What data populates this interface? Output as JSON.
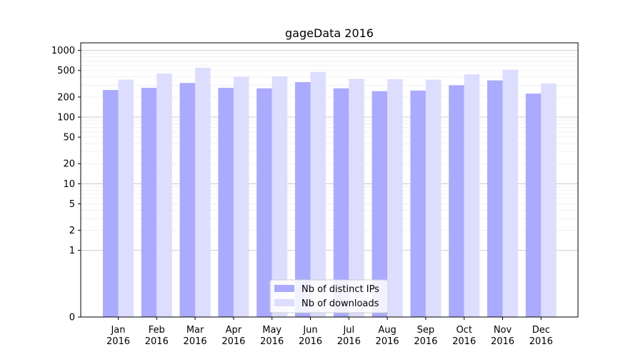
{
  "chart_data": {
    "type": "bar",
    "title": "gageData 2016",
    "xlabel": "",
    "ylabel": "",
    "yscale": "symlog",
    "ylim": [
      0,
      1300
    ],
    "grid": true,
    "legend_position": "bottom-center",
    "categories": [
      "Jan\n2016",
      "Feb\n2016",
      "Mar\n2016",
      "Apr\n2016",
      "May\n2016",
      "Jun\n2016",
      "Jul\n2016",
      "Aug\n2016",
      "Sep\n2016",
      "Oct\n2016",
      "Nov\n2016",
      "Dec\n2016"
    ],
    "yticks": [
      0,
      1,
      2,
      5,
      10,
      20,
      50,
      100,
      200,
      500,
      1000
    ],
    "ytick_labels": [
      "0",
      "1",
      "2",
      "5",
      "10",
      "20",
      "50",
      "100",
      "200",
      "500",
      "1000"
    ],
    "series": [
      {
        "name": "Nb of distinct IPs",
        "color": "#aaaaff",
        "values": [
          255,
          275,
          325,
          275,
          270,
          335,
          270,
          245,
          250,
          300,
          355,
          225
        ]
      },
      {
        "name": "Nb of downloads",
        "color": "#ddddff",
        "values": [
          365,
          450,
          550,
          405,
          410,
          475,
          375,
          370,
          365,
          440,
          515,
          320
        ]
      }
    ]
  }
}
